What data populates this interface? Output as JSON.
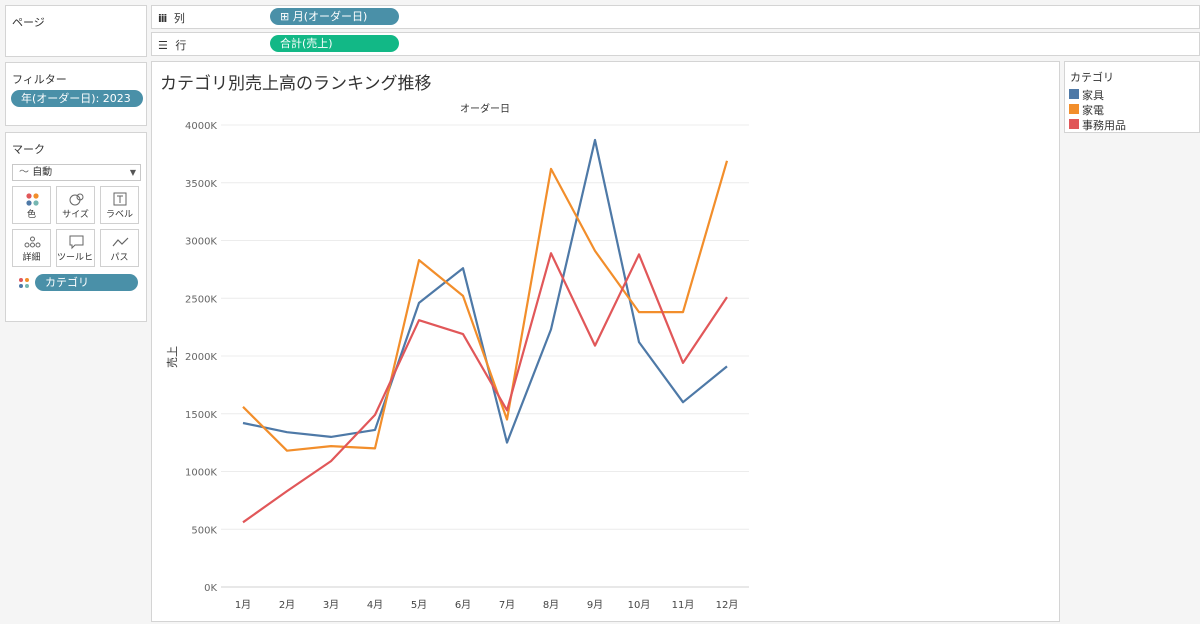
{
  "pages_panel": {
    "title": "ページ"
  },
  "filters_panel": {
    "title": "フィルター",
    "filter_pill": "年(オーダー日): 2023"
  },
  "marks_panel": {
    "title": "マーク",
    "mark_type": "自動",
    "buttons": [
      {
        "label": "色",
        "icon": "color-icon"
      },
      {
        "label": "サイズ",
        "icon": "size-icon"
      },
      {
        "label": "ラベル",
        "icon": "label-icon"
      },
      {
        "label": "詳細",
        "icon": "detail-icon"
      },
      {
        "label": "ツールヒ…",
        "icon": "tooltip-icon"
      },
      {
        "label": "パス",
        "icon": "path-icon"
      }
    ],
    "color_pill": "カテゴリ"
  },
  "columns_shelf": {
    "label": "列",
    "pill": "⊞ 月(オーダー日)"
  },
  "rows_shelf": {
    "label": "行",
    "pill": "合計(売上)"
  },
  "legend": {
    "title": "カテゴリ",
    "items": [
      {
        "name": "家具",
        "color": "#4e79a7"
      },
      {
        "name": "家電",
        "color": "#f28e2b"
      },
      {
        "name": "事務用品",
        "color": "#e15759"
      }
    ]
  },
  "chart_data": {
    "type": "line",
    "title": "カテゴリ別売上高のランキング推移",
    "header": "オーダー日",
    "xlabel": "",
    "ylabel": "売上",
    "categories": [
      "1月",
      "2月",
      "3月",
      "4月",
      "5月",
      "6月",
      "7月",
      "8月",
      "9月",
      "10月",
      "11月",
      "12月"
    ],
    "ylim": [
      0,
      4000000
    ],
    "yticks": [
      0,
      500000,
      1000000,
      1500000,
      2000000,
      2500000,
      3000000,
      3500000,
      4000000
    ],
    "ytick_labels": [
      "0K",
      "500K",
      "1000K",
      "1500K",
      "2000K",
      "2500K",
      "3000K",
      "3500K",
      "4000K"
    ],
    "grid": true,
    "legend_position": "right",
    "series": [
      {
        "name": "家具",
        "color": "#4e79a7",
        "values": [
          1420000,
          1340000,
          1300000,
          1360000,
          2460000,
          2760000,
          1250000,
          2230000,
          3870000,
          2120000,
          1600000,
          1910000
        ]
      },
      {
        "name": "家電",
        "color": "#f28e2b",
        "values": [
          1560000,
          1180000,
          1220000,
          1200000,
          2830000,
          2520000,
          1450000,
          3620000,
          2910000,
          2380000,
          2380000,
          3690000
        ]
      },
      {
        "name": "事務用品",
        "color": "#e15759",
        "values": [
          560000,
          830000,
          1090000,
          1490000,
          2310000,
          2190000,
          1530000,
          2890000,
          2090000,
          2880000,
          1940000,
          2510000
        ]
      }
    ]
  }
}
